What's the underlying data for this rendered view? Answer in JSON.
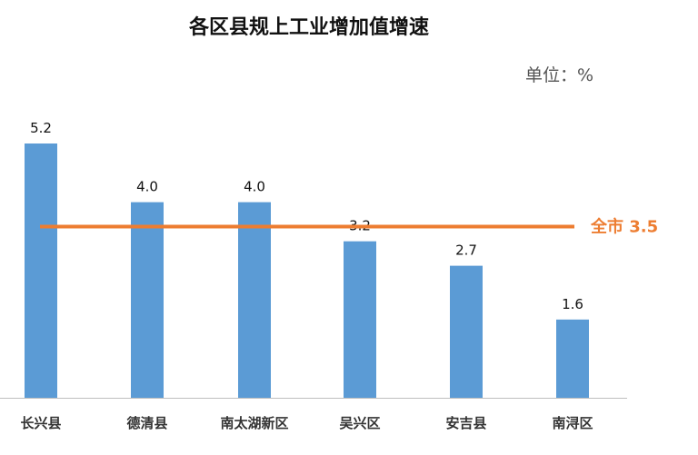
{
  "chart_data": {
    "type": "bar",
    "title": "各区县规上工业增加值增速",
    "unit_label": "单位：%",
    "categories": [
      "长兴县",
      "德清县",
      "南太湖新区",
      "吴兴区",
      "安吉县",
      "南浔区"
    ],
    "values": [
      5.2,
      4.0,
      4.0,
      3.2,
      2.7,
      1.6
    ],
    "value_labels": [
      "5.2",
      "4.0",
      "4.0",
      "3.2",
      "2.7",
      "1.6"
    ],
    "reference_line": {
      "label": "全市 3.5",
      "value": 3.5
    },
    "ylim": [
      0,
      5.2
    ],
    "grid": false,
    "legend": "none",
    "colors": {
      "bar": "#5b9bd5",
      "reference": "#ed7d31"
    }
  }
}
